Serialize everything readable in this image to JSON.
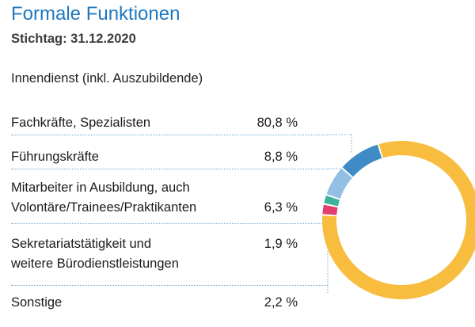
{
  "title": "Formale Funktionen",
  "subtitle": "Stichtag: 31.12.2020",
  "section_label": "Innendienst (inkl. Auszubildende)",
  "colors": {
    "title": "#1f78c1",
    "separator": "#6fa6cf"
  },
  "chart_data": {
    "type": "pie",
    "subtype": "donut",
    "categories": [
      "Fachkräfte, Spezialisten",
      "Führungskräfte",
      "Mitarbeiter in Ausbildung, auch Volontäre/Trainees/Praktikanten",
      "Sekretariatstätigkeit und weitere Bürodienstleistungen",
      "Sonstige"
    ],
    "values": [
      80.8,
      8.8,
      6.3,
      1.9,
      2.2
    ],
    "value_labels": [
      "80,8 %",
      "8,8 %",
      "6,3 %",
      "1,9 %",
      "2,2 %"
    ],
    "colors": [
      "#f8bd3e",
      "#3f8bc6",
      "#92bfe3",
      "#3cb39b",
      "#e13e6e"
    ],
    "label_lines": [
      [
        "Fachkräfte, Spezialisten"
      ],
      [
        "Führungskräfte"
      ],
      [
        "Mitarbeiter in Ausbildung, auch",
        "Volontäre/Trainees/Praktikanten"
      ],
      [
        "Sekretariatstätigkeit und",
        "weitere Bürodienstleistungen"
      ],
      [
        "Sonstige"
      ]
    ]
  }
}
